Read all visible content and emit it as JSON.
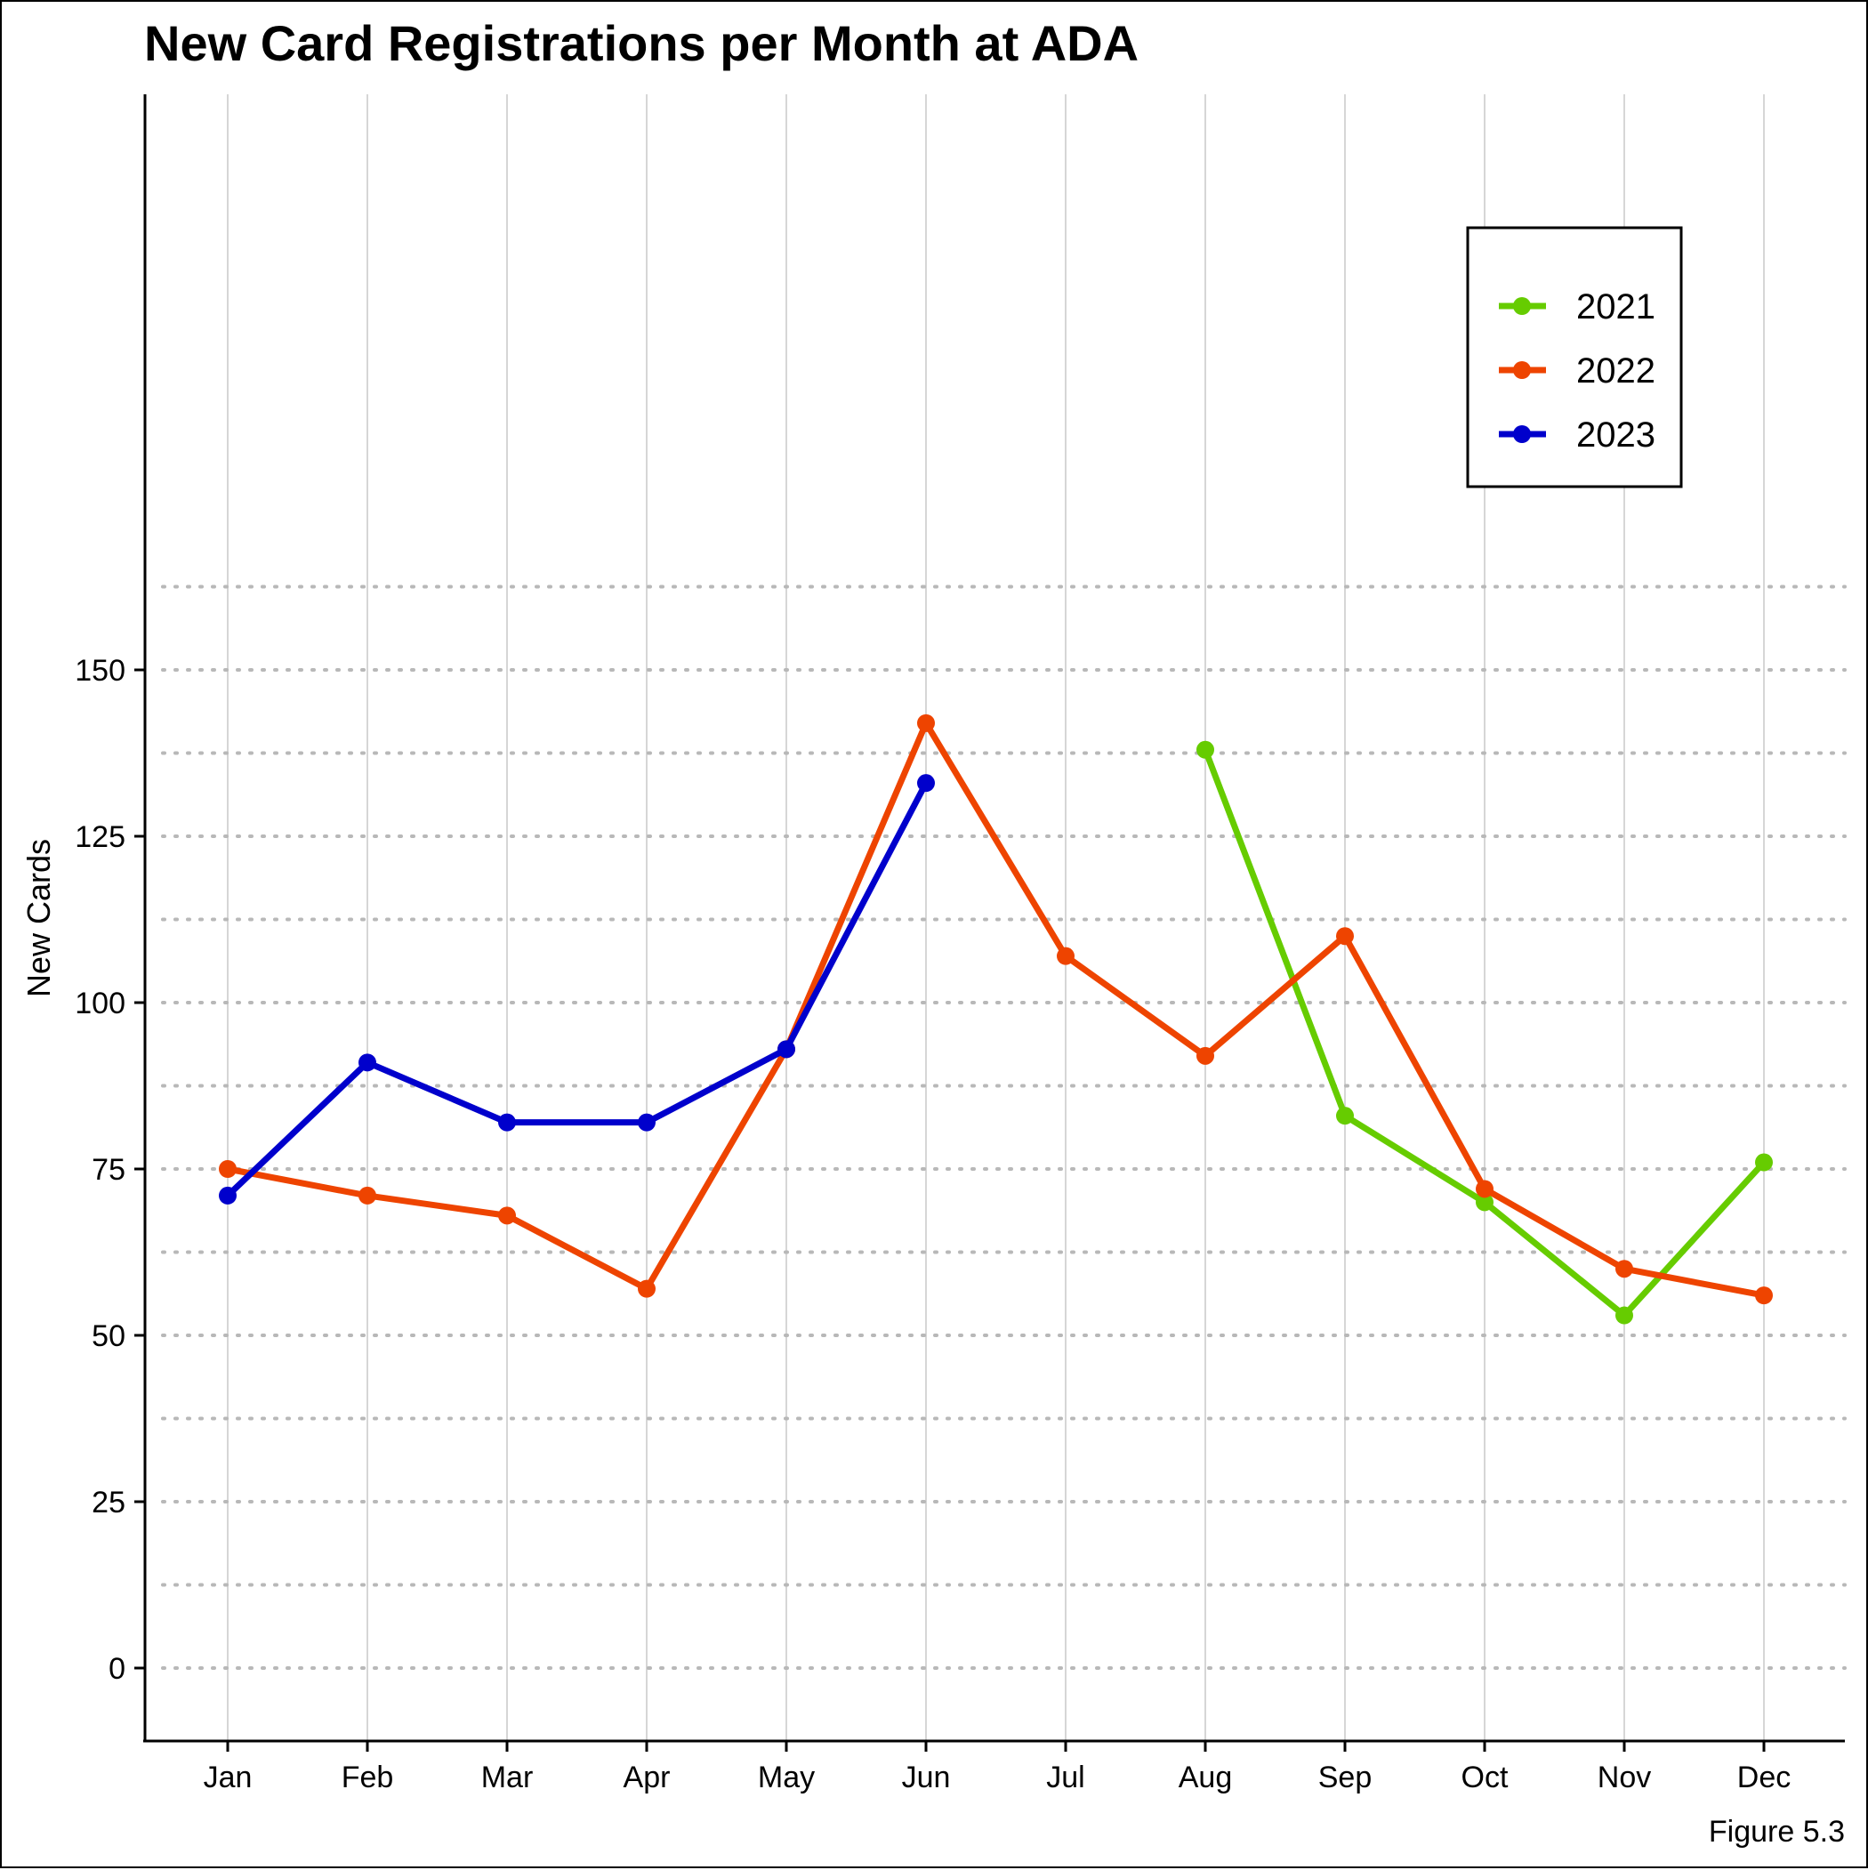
{
  "chart_data": {
    "type": "line",
    "title": "New Card Registrations per Month at ADA",
    "xlabel": "",
    "ylabel": "New Cards",
    "caption": "Figure 5.3",
    "categories": [
      "Jan",
      "Feb",
      "Mar",
      "Apr",
      "May",
      "Jun",
      "Jul",
      "Aug",
      "Sep",
      "Oct",
      "Nov",
      "Dec"
    ],
    "yticks": [
      0,
      25,
      50,
      75,
      100,
      125,
      150
    ],
    "ylim": [
      -7.5,
      157.5
    ],
    "grid": {
      "vertical": true,
      "horizontal_dotted": true
    },
    "legend": {
      "position": "top-right"
    },
    "series": [
      {
        "name": "2021",
        "color": "#66CC00",
        "values": [
          null,
          null,
          null,
          null,
          null,
          null,
          null,
          138,
          83,
          70,
          53,
          76
        ]
      },
      {
        "name": "2022",
        "color": "#EE4400",
        "values": [
          75,
          71,
          68,
          57,
          93,
          142,
          107,
          92,
          110,
          72,
          60,
          56
        ]
      },
      {
        "name": "2023",
        "color": "#0000CC",
        "values": [
          71,
          91,
          82,
          82,
          93,
          133,
          null,
          null,
          null,
          null,
          null,
          null
        ]
      }
    ]
  }
}
